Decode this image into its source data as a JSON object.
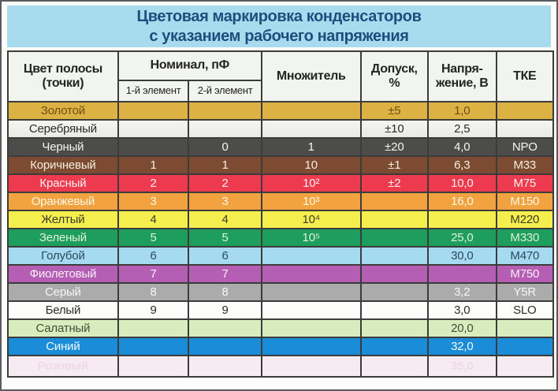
{
  "title": {
    "line1": "Цветовая маркировка конденсаторов",
    "line2": "с указанием рабочего напряжения"
  },
  "theme": {
    "title_bg": "#a8dbee",
    "title_fg": "#1c4e7e",
    "header_bg": "#f2f4ef",
    "grid": "#3c3c3a"
  },
  "table": {
    "headers": {
      "color_l1": "Цвет полосы",
      "color_l2": "(точки)",
      "nominal": "Номинал, пФ",
      "el1": "1-й элемент",
      "el2": "2-й элемент",
      "multiplier": "Множитель",
      "tolerance_l1": "Допуск,",
      "tolerance_l2": "%",
      "voltage_l1": "Напря-",
      "voltage_l2": "жение, В",
      "tke": "ТКЕ"
    },
    "rows": [
      {
        "id": "gold",
        "name": "Золотой",
        "el1": "",
        "el2": "",
        "mult": "",
        "tol": "±5",
        "volt": "1,0",
        "tke": "",
        "bg": "#dcb244",
        "fg": "#6f4f10",
        "faded": false
      },
      {
        "id": "silver",
        "name": "Серебряный",
        "el1": "",
        "el2": "",
        "mult": "",
        "tol": "±10",
        "volt": "2,5",
        "tke": "",
        "bg": "#eff0ec",
        "fg": "#2c2c2c",
        "faded": false
      },
      {
        "id": "black",
        "name": "Черный",
        "el1": "",
        "el2": "0",
        "mult": "1",
        "tol": "±20",
        "volt": "4,0",
        "tke": "NPO",
        "bg": "#4c4c4a",
        "fg": "#f4f4f2",
        "faded": false
      },
      {
        "id": "brown",
        "name": "Коричневый",
        "el1": "1",
        "el2": "1",
        "mult": "10",
        "tol": "±1",
        "volt": "6,3",
        "tke": "М33",
        "bg": "#7c4b32",
        "fg": "#f6eedd",
        "faded": false
      },
      {
        "id": "red",
        "name": "Красный",
        "el1": "2",
        "el2": "2",
        "mult": "10²",
        "tol": "±2",
        "volt": "10,0",
        "tke": "М75",
        "bg": "#ed3a4e",
        "fg": "#fdf0f0",
        "faded": false
      },
      {
        "id": "orange",
        "name": "Оранжевый",
        "el1": "3",
        "el2": "3",
        "mult": "10³",
        "tol": "",
        "volt": "16,0",
        "tke": "М150",
        "bg": "#f2a340",
        "fg": "#fdf7e6",
        "faded": false
      },
      {
        "id": "yellow",
        "name": "Желтый",
        "el1": "4",
        "el2": "4",
        "mult": "10⁴",
        "tol": "",
        "volt": "",
        "tke": "М220",
        "bg": "#f5ef4e",
        "fg": "#3c3c30",
        "faded": false
      },
      {
        "id": "green",
        "name": "Зеленый",
        "el1": "5",
        "el2": "5",
        "mult": "10⁵",
        "tol": "",
        "volt": "25,0",
        "tke": "М330",
        "bg": "#1d9e5e",
        "fg": "#e2f2d2",
        "faded": false
      },
      {
        "id": "lightblue",
        "name": "Голубой",
        "el1": "6",
        "el2": "6",
        "mult": "",
        "tol": "",
        "volt": "30,0",
        "tke": "М470",
        "bg": "#a6daf1",
        "fg": "#2b4a5e",
        "faded": false
      },
      {
        "id": "violet",
        "name": "Фиолетовый",
        "el1": "7",
        "el2": "7",
        "mult": "",
        "tol": "",
        "volt": "",
        "tke": "М750",
        "bg": "#b45fb3",
        "fg": "#fbeefb",
        "faded": false
      },
      {
        "id": "gray",
        "name": "Серый",
        "el1": "8",
        "el2": "8",
        "mult": "",
        "tol": "",
        "volt": "3,2",
        "tke": "Y5R",
        "bg": "#ababab",
        "fg": "#f6f6f4",
        "faded": false
      },
      {
        "id": "white",
        "name": "Белый",
        "el1": "9",
        "el2": "9",
        "mult": "",
        "tol": "",
        "volt": "3,0",
        "tke": "SLO",
        "bg": "#fdfdfb",
        "fg": "#2c2c2c",
        "faded": false
      },
      {
        "id": "salad",
        "name": "Салатный",
        "el1": "",
        "el2": "",
        "mult": "",
        "tol": "",
        "volt": "20,0",
        "tke": "",
        "bg": "#d8edbe",
        "fg": "#42503a",
        "faded": false
      },
      {
        "id": "blue",
        "name": "Синий",
        "el1": "",
        "el2": "",
        "mult": "",
        "tol": "",
        "volt": "32,0",
        "tke": "",
        "bg": "#1a8cd8",
        "fg": "#f2fbff",
        "faded": false
      },
      {
        "id": "pink",
        "name": "Розовый",
        "el1": "",
        "el2": "",
        "mult": "",
        "tol": "",
        "volt": "35,0",
        "tke": "",
        "bg": "#f7ebf3",
        "fg": "#eddae8",
        "faded": true
      }
    ]
  }
}
